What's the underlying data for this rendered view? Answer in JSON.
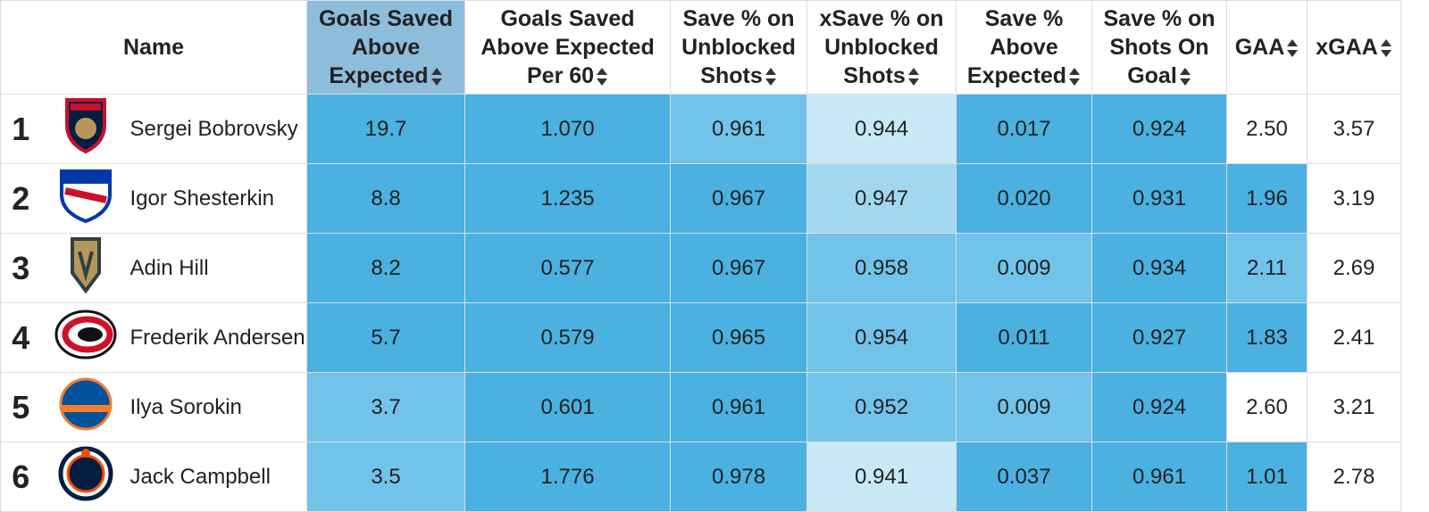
{
  "table": {
    "header": [
      "Name",
      "Goals Saved Above Expected",
      "Goals Saved Above Expected Per 60",
      "Save % on Unblocked Shots",
      "xSave % on Unblocked Shots",
      "Save % Above Expected",
      "Save % on Shots On Goal",
      "GAA",
      "xGAA"
    ],
    "header_colors": [
      "#ffffff",
      "#8ebcdb",
      "#ffffff",
      "#ffffff",
      "#ffffff",
      "#ffffff",
      "#ffffff",
      "#ffffff",
      "#ffffff"
    ],
    "rows": [
      {
        "rank": "1",
        "name": "Sergei Bobrovsky",
        "cells": [
          "19.7",
          "1.070",
          "0.961",
          "0.944",
          "0.017",
          "0.924",
          "2.50",
          "3.57"
        ],
        "colors": [
          "#4ab1e1",
          "#4ab1e1",
          "#72c3ea",
          "#c9e8f6",
          "#4ab1e1",
          "#4ab1e1",
          "#ffffff",
          "#ffffff"
        ]
      },
      {
        "rank": "2",
        "name": "Igor Shesterkin",
        "cells": [
          "8.8",
          "1.235",
          "0.967",
          "0.947",
          "0.020",
          "0.931",
          "1.96",
          "3.19"
        ],
        "colors": [
          "#4ab1e1",
          "#4ab1e1",
          "#4ab1e1",
          "#a3d7f0",
          "#4ab1e1",
          "#4ab1e1",
          "#4ab1e1",
          "#ffffff"
        ]
      },
      {
        "rank": "3",
        "name": "Adin Hill",
        "cells": [
          "8.2",
          "0.577",
          "0.967",
          "0.958",
          "0.009",
          "0.934",
          "2.11",
          "2.69"
        ],
        "colors": [
          "#4ab1e1",
          "#4ab1e1",
          "#4ab1e1",
          "#72c3ea",
          "#72c3ea",
          "#4ab1e1",
          "#72c3ea",
          "#ffffff"
        ]
      },
      {
        "rank": "4",
        "name": "Frederik Andersen",
        "cells": [
          "5.7",
          "0.579",
          "0.965",
          "0.954",
          "0.011",
          "0.927",
          "1.83",
          "2.41"
        ],
        "colors": [
          "#4ab1e1",
          "#4ab1e1",
          "#4ab1e1",
          "#72c3ea",
          "#4ab1e1",
          "#4ab1e1",
          "#4ab1e1",
          "#ffffff"
        ]
      },
      {
        "rank": "5",
        "name": "Ilya Sorokin",
        "cells": [
          "3.7",
          "0.601",
          "0.961",
          "0.952",
          "0.009",
          "0.924",
          "2.60",
          "3.21"
        ],
        "colors": [
          "#72c3ea",
          "#4ab1e1",
          "#4ab1e1",
          "#72c3ea",
          "#72c3ea",
          "#4ab1e1",
          "#ffffff",
          "#ffffff"
        ]
      },
      {
        "rank": "6",
        "name": "Jack Campbell",
        "cells": [
          "3.5",
          "1.776",
          "0.978",
          "0.941",
          "0.037",
          "0.961",
          "1.01",
          "2.78"
        ],
        "colors": [
          "#72c3ea",
          "#4ab1e1",
          "#4ab1e1",
          "#c9e8f6",
          "#4ab1e1",
          "#4ab1e1",
          "#4ab1e1",
          "#ffffff"
        ]
      }
    ]
  }
}
